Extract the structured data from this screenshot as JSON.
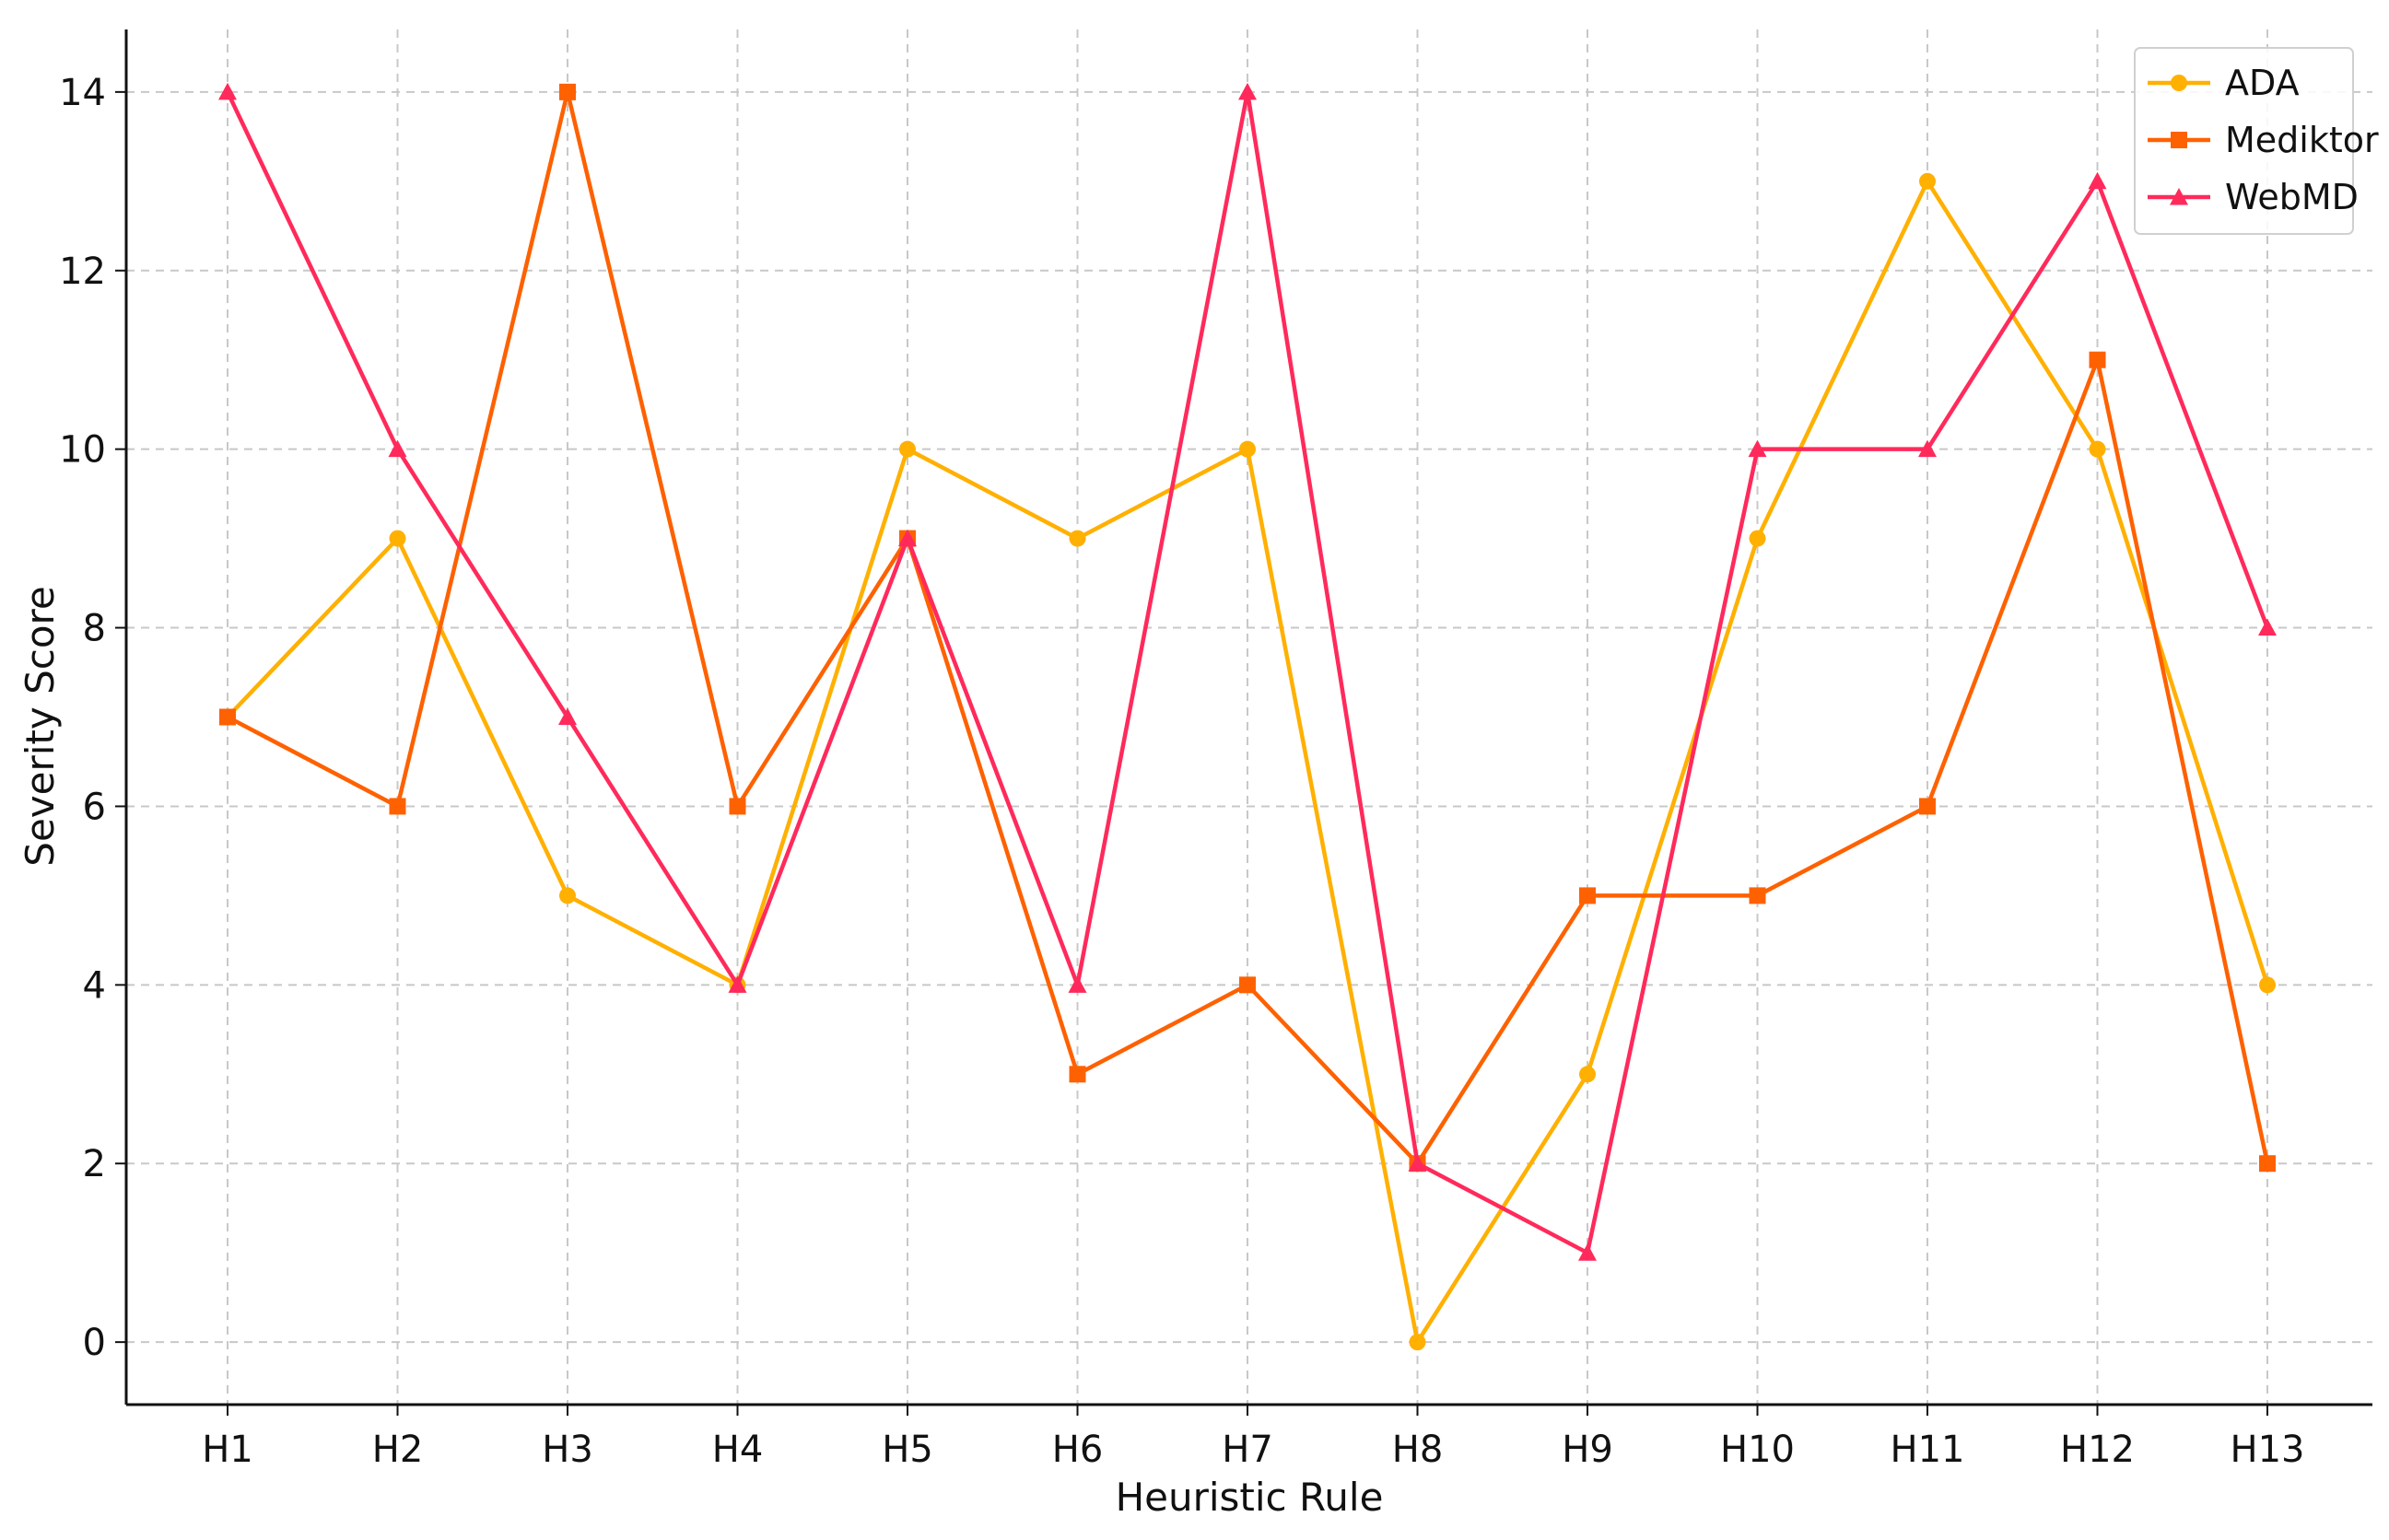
{
  "chart_data": {
    "type": "line",
    "title": "",
    "xlabel": "Heuristic Rule",
    "ylabel": "Severity Score",
    "categories": [
      "H1",
      "H2",
      "H3",
      "H4",
      "H5",
      "H6",
      "H7",
      "H8",
      "H9",
      "H10",
      "H11",
      "H12",
      "H13"
    ],
    "ylim": [
      -0.7,
      14.7
    ],
    "yticks": [
      0,
      2,
      4,
      6,
      8,
      10,
      12,
      14
    ],
    "grid": true,
    "grid_style": "dashed",
    "legend_position": "top-right",
    "series": [
      {
        "name": "ADA",
        "color": "#FFB000",
        "marker": "circle",
        "values": [
          7,
          9,
          5,
          4,
          10,
          9,
          10,
          0,
          3,
          9,
          13,
          10,
          4
        ]
      },
      {
        "name": "Mediktor",
        "color": "#FE6100",
        "marker": "square",
        "values": [
          7,
          6,
          14,
          6,
          9,
          3,
          4,
          2,
          5,
          5,
          6,
          11,
          2
        ]
      },
      {
        "name": "WebMD",
        "color": "#FF2A5B",
        "marker": "triangle",
        "values": [
          14,
          10,
          7,
          4,
          9,
          4,
          14,
          2,
          1,
          10,
          10,
          13,
          8
        ]
      }
    ]
  }
}
